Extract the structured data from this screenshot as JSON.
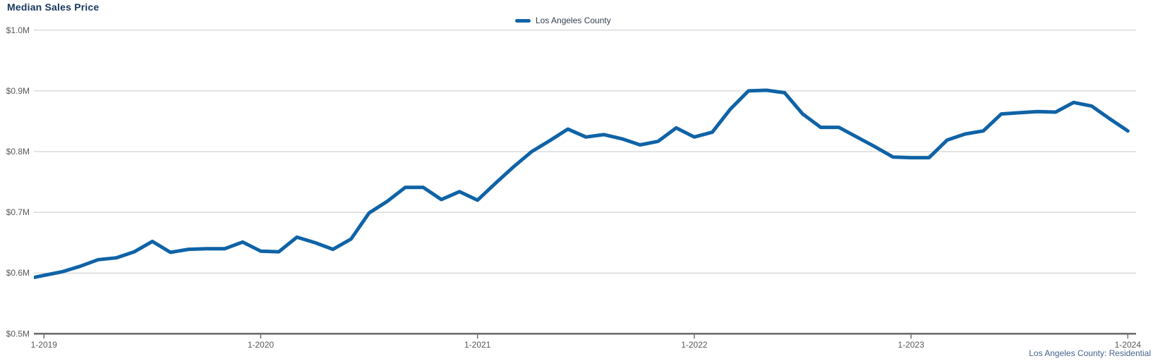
{
  "header": {
    "title": "Median Sales Price"
  },
  "legend": {
    "items": [
      {
        "label": "Los Angeles County",
        "color": "#0F63A6"
      }
    ]
  },
  "footer": {
    "caption": "Los Angeles County: Residential"
  },
  "colors": {
    "line": "#0F63A6",
    "title_text": "#17375E",
    "legend_text": "#333F50",
    "axis_text": "#595959",
    "gridline": "#C9C9C9",
    "axis_line": "#6E6E6E",
    "footer_text": "#46648C",
    "background": "#FFFFFF"
  },
  "chart_data": {
    "type": "line",
    "title": "Median Sales Price",
    "unit": "$M",
    "grid": "horizontal",
    "legend_position": "top-center",
    "ylim": [
      0.5,
      1.0
    ],
    "y_axis": {
      "tick_values": [
        1.0,
        0.9,
        0.8,
        0.7,
        0.6,
        0.5
      ],
      "tick_labels": [
        "$1.0M",
        "$0.9M",
        "$0.8M",
        "$0.7M",
        "$0.6M",
        "$0.5M"
      ]
    },
    "x_axis": {
      "tick_labels": [
        "1-2019",
        "1-2020",
        "1-2021",
        "1-2022",
        "1-2023",
        "1-2024"
      ]
    },
    "x": [
      "12-2018",
      "1-2019",
      "2-2019",
      "3-2019",
      "4-2019",
      "5-2019",
      "6-2019",
      "7-2019",
      "8-2019",
      "9-2019",
      "10-2019",
      "11-2019",
      "12-2019",
      "1-2020",
      "2-2020",
      "3-2020",
      "4-2020",
      "5-2020",
      "6-2020",
      "7-2020",
      "8-2020",
      "9-2020",
      "10-2020",
      "11-2020",
      "12-2020",
      "1-2021",
      "2-2021",
      "3-2021",
      "4-2021",
      "5-2021",
      "6-2021",
      "7-2021",
      "8-2021",
      "9-2021",
      "10-2021",
      "11-2021",
      "12-2021",
      "1-2022",
      "2-2022",
      "3-2022",
      "4-2022",
      "5-2022",
      "6-2022",
      "7-2022",
      "8-2022",
      "9-2022",
      "10-2022",
      "11-2022",
      "12-2022",
      "1-2023",
      "2-2023",
      "3-2023",
      "4-2023",
      "5-2023",
      "6-2023",
      "7-2023",
      "8-2023",
      "9-2023",
      "10-2023",
      "11-2023",
      "12-2023",
      "1-2024"
    ],
    "series": [
      {
        "name": "Los Angeles County",
        "values": [
          0.59,
          0.596,
          0.602,
          0.611,
          0.622,
          0.625,
          0.635,
          0.652,
          0.634,
          0.639,
          0.64,
          0.64,
          0.651,
          0.636,
          0.635,
          0.659,
          0.65,
          0.639,
          0.656,
          0.699,
          0.718,
          0.741,
          0.741,
          0.721,
          0.734,
          0.72,
          0.748,
          0.775,
          0.8,
          0.818,
          0.837,
          0.824,
          0.828,
          0.821,
          0.811,
          0.817,
          0.839,
          0.824,
          0.832,
          0.87,
          0.9,
          0.901,
          0.897,
          0.862,
          0.84,
          0.84,
          0.824,
          0.808,
          0.791,
          0.79,
          0.79,
          0.819,
          0.829,
          0.834,
          0.862,
          0.864,
          0.866,
          0.865,
          0.881,
          0.875,
          0.854,
          0.834
        ]
      }
    ]
  }
}
